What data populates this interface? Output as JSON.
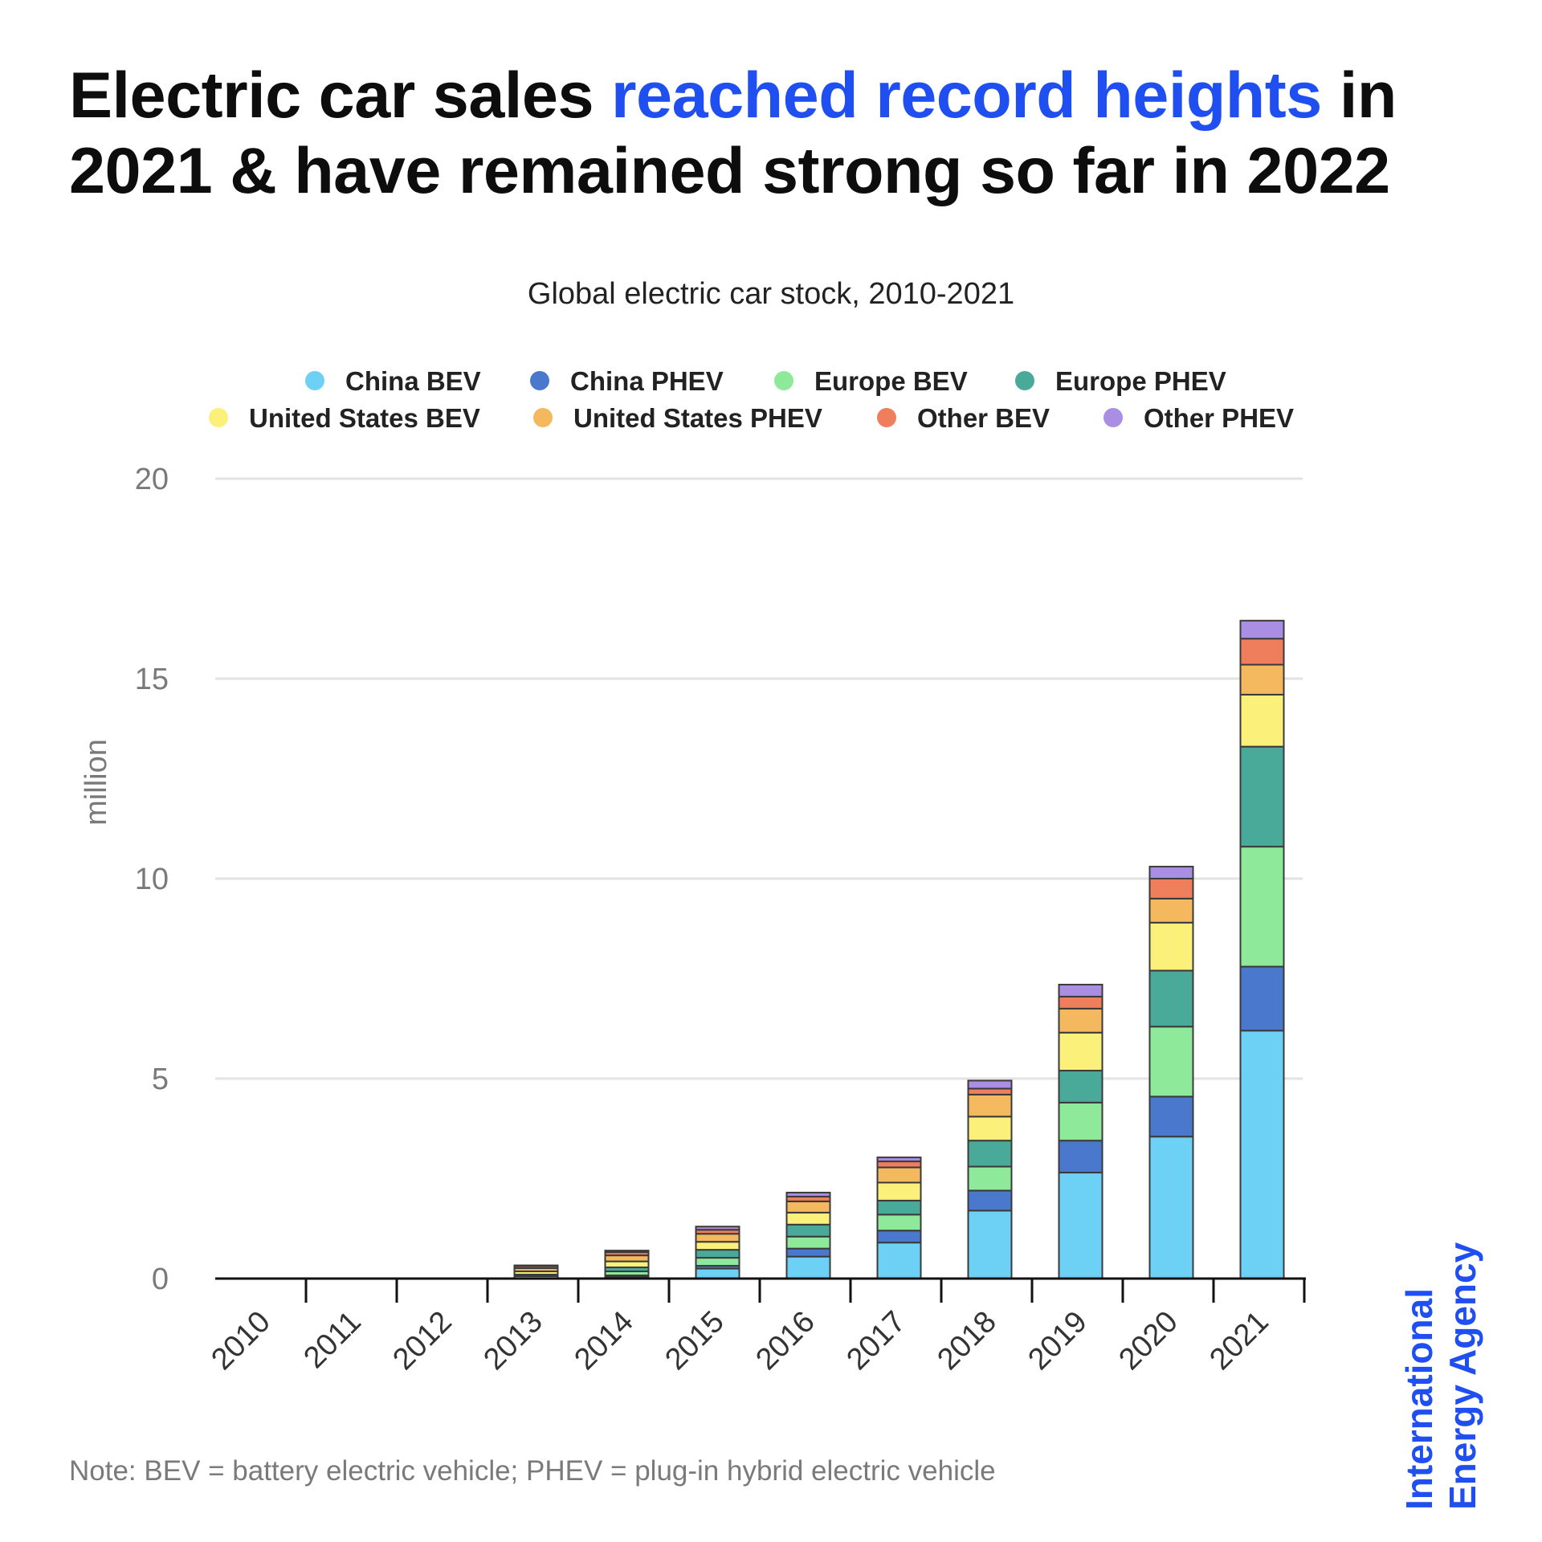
{
  "headline": {
    "part1": "Electric car sales ",
    "accent": "reached record heights",
    "part2": " in 2021 & have remained strong so far in 2022",
    "accent_color": "#1f4ff0"
  },
  "note": "Note: BEV = battery electric vehicle; PHEV = plug-in hybrid electric vehicle",
  "logo": {
    "line1": "International",
    "line2": "Energy Agency",
    "color": "#1f4ff0"
  },
  "chart_data": {
    "type": "bar",
    "stacked": true,
    "title": "Global electric car stock, 2010-2021",
    "ylabel": "million",
    "xlabel": "",
    "ylim": [
      0,
      20
    ],
    "yticks": [
      0,
      5,
      10,
      15,
      20
    ],
    "grid": true,
    "legend_position": "top",
    "categories": [
      "2010",
      "2011",
      "2012",
      "2013",
      "2014",
      "2015",
      "2016",
      "2017",
      "2018",
      "2019",
      "2020",
      "2021"
    ],
    "series": [
      {
        "name": "China BEV",
        "color": "#6dd0f5",
        "values": [
          0,
          0,
          0,
          0.01,
          0.05,
          0.25,
          0.55,
          0.9,
          1.7,
          2.65,
          3.55,
          6.2
        ]
      },
      {
        "name": "China PHEV",
        "color": "#4a78cc",
        "values": [
          0,
          0,
          0,
          0,
          0.03,
          0.07,
          0.2,
          0.3,
          0.5,
          0.8,
          1.0,
          1.6
        ]
      },
      {
        "name": "Europe BEV",
        "color": "#8ee99a",
        "values": [
          0,
          0,
          0,
          0.05,
          0.1,
          0.2,
          0.3,
          0.4,
          0.6,
          0.95,
          1.75,
          3.0
        ]
      },
      {
        "name": "Europe PHEV",
        "color": "#4aaa9a",
        "values": [
          0,
          0,
          0,
          0.04,
          0.1,
          0.2,
          0.3,
          0.35,
          0.65,
          0.8,
          1.4,
          2.5
        ]
      },
      {
        "name": "United States BEV",
        "color": "#fbf07a",
        "values": [
          0,
          0,
          0,
          0.08,
          0.15,
          0.2,
          0.3,
          0.45,
          0.6,
          0.95,
          1.2,
          1.3
        ]
      },
      {
        "name": "United States PHEV",
        "color": "#f4b95e",
        "values": [
          0,
          0,
          0,
          0.08,
          0.15,
          0.2,
          0.28,
          0.38,
          0.55,
          0.6,
          0.6,
          0.75
        ]
      },
      {
        "name": "Other BEV",
        "color": "#ef7e5c",
        "values": [
          0,
          0,
          0,
          0.05,
          0.08,
          0.1,
          0.12,
          0.15,
          0.15,
          0.3,
          0.5,
          0.65
        ]
      },
      {
        "name": "Other PHEV",
        "color": "#a98ee3",
        "values": [
          0,
          0,
          0,
          0.02,
          0.04,
          0.08,
          0.1,
          0.1,
          0.2,
          0.3,
          0.3,
          0.45
        ]
      }
    ]
  }
}
